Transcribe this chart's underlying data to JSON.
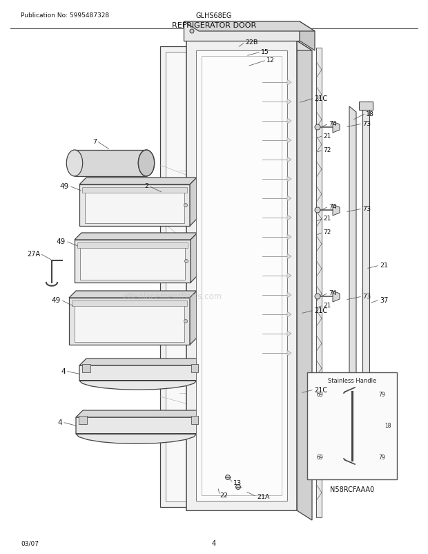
{
  "title": "REFRIGERATOR DOOR",
  "pub_no": "Publication No: 5995487328",
  "model": "GLHS68EG",
  "page": "4",
  "date": "03/07",
  "bg_color": "#ffffff",
  "fg_color": "#222222",
  "line_color": "#333333",
  "label_color": "#111111"
}
